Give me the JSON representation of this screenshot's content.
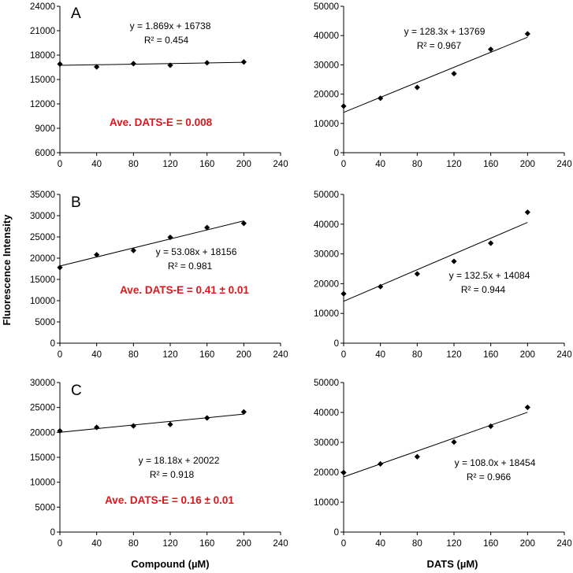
{
  "figure": {
    "ylabel": "Fluorescence Intensity",
    "xlabel_left": "Compound (µM)",
    "xlabel_right": "DATS (µM)"
  },
  "chart_data": [
    {
      "type": "scatter",
      "row": 1,
      "col": 1,
      "panel": "A",
      "x": [
        0,
        40,
        80,
        120,
        160,
        200
      ],
      "y": [
        16900,
        16550,
        16950,
        16750,
        17050,
        17150
      ],
      "xlim": [
        0,
        240
      ],
      "ylim": [
        6000,
        24000
      ],
      "xticks": [
        0,
        40,
        80,
        120,
        160,
        200,
        240
      ],
      "yticks": [
        6000,
        9000,
        12000,
        15000,
        18000,
        21000,
        24000
      ],
      "trendline": {
        "slope": 1.869,
        "intercept": 16738
      },
      "equation": "y = 1.869x + 16738",
      "r2": "R² = 0.454",
      "annotation": "Ave. DATS-E = 0.008"
    },
    {
      "type": "scatter",
      "row": 1,
      "col": 2,
      "x": [
        0,
        40,
        80,
        120,
        160,
        200
      ],
      "y": [
        15900,
        18600,
        22300,
        27000,
        35300,
        40600
      ],
      "xlim": [
        0,
        240
      ],
      "ylim": [
        0,
        50000
      ],
      "xticks": [
        0,
        40,
        80,
        120,
        160,
        200,
        240
      ],
      "yticks": [
        0,
        10000,
        20000,
        30000,
        40000,
        50000
      ],
      "trendline": {
        "slope": 128.3,
        "intercept": 13769
      },
      "equation": "y = 128.3x + 13769",
      "r2": "R² = 0.967"
    },
    {
      "type": "scatter",
      "row": 2,
      "col": 1,
      "panel": "B",
      "x": [
        0,
        40,
        80,
        120,
        160,
        200
      ],
      "y": [
        17800,
        20800,
        21800,
        24900,
        27200,
        28200
      ],
      "xlim": [
        0,
        240
      ],
      "ylim": [
        0,
        35000
      ],
      "xticks": [
        0,
        40,
        80,
        120,
        160,
        200,
        240
      ],
      "yticks": [
        0,
        5000,
        10000,
        15000,
        20000,
        25000,
        30000,
        35000
      ],
      "trendline": {
        "slope": 53.08,
        "intercept": 18156
      },
      "equation": "y = 53.08x + 18156",
      "r2": "R² = 0.981",
      "annotation": "Ave. DATS-E = 0.41 ± 0.01"
    },
    {
      "type": "scatter",
      "row": 2,
      "col": 2,
      "x": [
        0,
        40,
        80,
        120,
        160,
        200
      ],
      "y": [
        16600,
        19000,
        23300,
        27500,
        33600,
        44000
      ],
      "xlim": [
        0,
        240
      ],
      "ylim": [
        0,
        50000
      ],
      "xticks": [
        0,
        40,
        80,
        120,
        160,
        200,
        240
      ],
      "yticks": [
        0,
        10000,
        20000,
        30000,
        40000,
        50000
      ],
      "trendline": {
        "slope": 132.5,
        "intercept": 14084
      },
      "equation": "y = 132.5x + 14084",
      "r2": "R² = 0.944"
    },
    {
      "type": "scatter",
      "row": 3,
      "col": 1,
      "panel": "C",
      "x": [
        0,
        40,
        80,
        120,
        160,
        200
      ],
      "y": [
        20300,
        21000,
        21300,
        21600,
        22900,
        24100
      ],
      "xlim": [
        0,
        240
      ],
      "ylim": [
        0,
        30000
      ],
      "xticks": [
        0,
        40,
        80,
        120,
        160,
        200,
        240
      ],
      "yticks": [
        0,
        5000,
        10000,
        15000,
        20000,
        25000,
        30000
      ],
      "trendline": {
        "slope": 18.18,
        "intercept": 20022
      },
      "equation": "y = 18.18x + 20022",
      "r2": "R² = 0.918",
      "annotation": "Ave. DATS-E = 0.16 ± 0.01"
    },
    {
      "type": "scatter",
      "row": 3,
      "col": 2,
      "x": [
        0,
        40,
        80,
        120,
        160,
        200
      ],
      "y": [
        19900,
        22800,
        25200,
        30100,
        35400,
        41700
      ],
      "xlim": [
        0,
        240
      ],
      "ylim": [
        0,
        50000
      ],
      "xticks": [
        0,
        40,
        80,
        120,
        160,
        200,
        240
      ],
      "yticks": [
        0,
        10000,
        20000,
        30000,
        40000,
        50000
      ],
      "trendline": {
        "slope": 108.0,
        "intercept": 18454
      },
      "equation": "y = 108.0x + 18454",
      "r2": "R² = 0.966"
    }
  ]
}
